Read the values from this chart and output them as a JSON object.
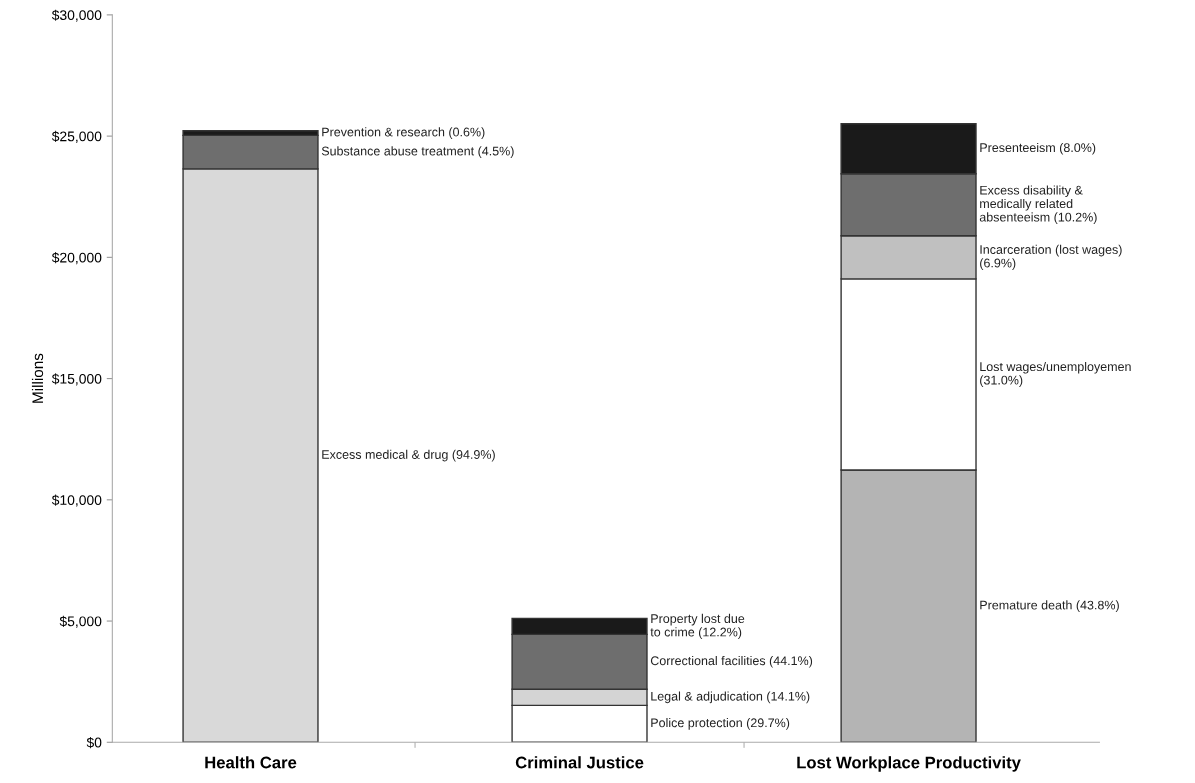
{
  "chart_data": {
    "type": "bar",
    "stacked": true,
    "ylabel": "Millions",
    "categories": [
      "Health Care",
      "Criminal Justice",
      "Lost Workplace Productivity"
    ],
    "ylim": [
      0,
      30000
    ],
    "yticks": [
      {
        "value": 0,
        "label": "$0"
      },
      {
        "value": 5000,
        "label": "$5,000"
      },
      {
        "value": 10000,
        "label": "$10,000"
      },
      {
        "value": 15000,
        "label": "$15,000"
      },
      {
        "value": 20000,
        "label": "$20,000"
      },
      {
        "value": 25000,
        "label": "$25,000"
      },
      {
        "value": 30000,
        "label": "$30,000"
      }
    ],
    "grid": false,
    "legend": false,
    "series": [
      {
        "name": "Excess medical & drug (94.9%)",
        "color": "#d9d9d9",
        "values": [
          23650,
          null,
          null
        ]
      },
      {
        "name": "Police protection (29.7%)",
        "color": "#ffffff",
        "values": [
          null,
          1520,
          null
        ]
      },
      {
        "name": "Legal & adjudication (14.1%)",
        "color": "#d4d4d4",
        "values": [
          null,
          670,
          null
        ]
      },
      {
        "name": "Correctional facilities (44.1%)",
        "color": "#6e6e6e",
        "values": [
          null,
          2260,
          null
        ]
      },
      {
        "name": "Property lost due\nto crime (12.2%)",
        "color": "#1a1a1a",
        "values": [
          null,
          660,
          null
        ]
      },
      {
        "name": "Premature death (43.8%)",
        "color": "#b4b4b4",
        "values": [
          null,
          null,
          11230
        ]
      },
      {
        "name": "Lost wages/unemployemen\n(31.0%)",
        "color": "#ffffff",
        "values": [
          null,
          null,
          7880
        ]
      },
      {
        "name": "Incarceration (lost wages)\n(6.9%)",
        "color": "#c0c0c0",
        "values": [
          null,
          null,
          1780
        ]
      },
      {
        "name": "Excess disability &\nmedically related\nabsenteeism (10.2%)",
        "color": "#6e6e6e",
        "values": [
          null,
          null,
          2560
        ]
      },
      {
        "name": "Presenteeism (8.0%)",
        "color": "#1a1a1a",
        "values": [
          null,
          null,
          2060
        ]
      },
      {
        "name": "Substance abuse treatment (4.5%)",
        "color": "#6e6e6e",
        "values": [
          1380,
          null,
          null
        ]
      },
      {
        "name": "Prevention & research (0.6%)",
        "color": "#1a1a1a",
        "values": [
          190,
          null,
          null
        ]
      }
    ]
  }
}
